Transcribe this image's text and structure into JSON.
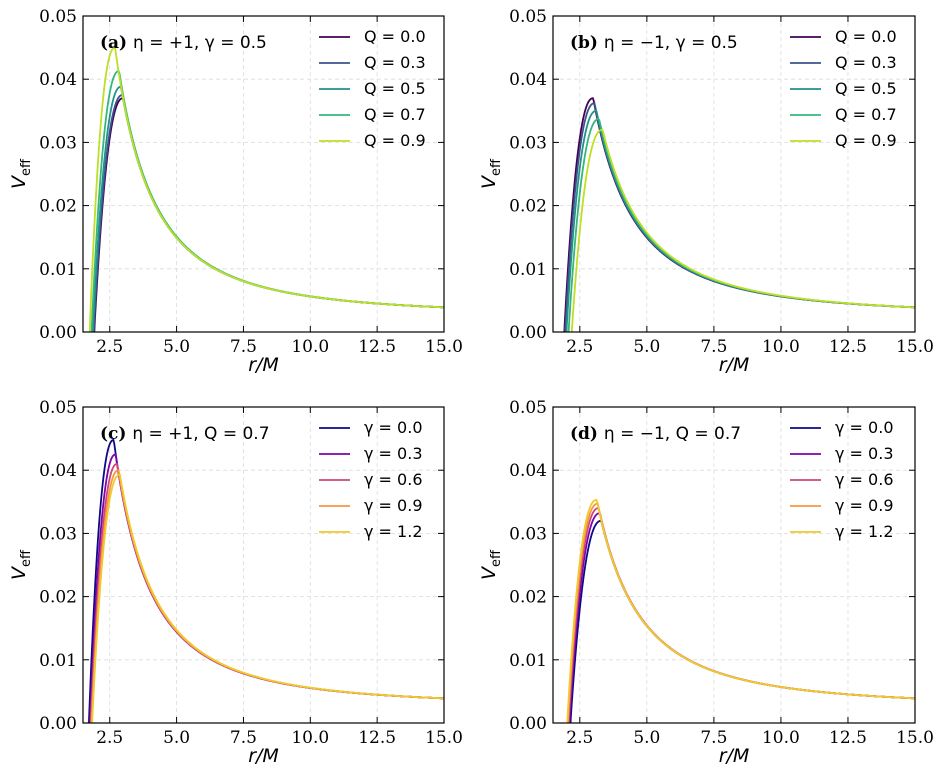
{
  "chart_data": [
    {
      "id": "a",
      "type": "line",
      "title_label": "(a)",
      "title_text": "η = +1, γ = 0.5",
      "xlabel": "r/M",
      "ylabel": "V_eff",
      "xlim": [
        1.5,
        15.0
      ],
      "ylim": [
        0.0,
        0.05
      ],
      "xticks": [
        "2.5",
        "5.0",
        "7.5",
        "10.0",
        "12.5",
        "15.0"
      ],
      "yticks": [
        "0.00",
        "0.01",
        "0.02",
        "0.03",
        "0.04",
        "0.05"
      ],
      "grid": true,
      "legend_position": "top-right",
      "series": [
        {
          "name": "Q = 0.0",
          "color": "#440154",
          "root": 1.92,
          "peak_r": 3.0,
          "peak_v": 0.037
        },
        {
          "name": "Q = 0.3",
          "color": "#3b528b",
          "root": 1.9,
          "peak_r": 2.98,
          "peak_v": 0.0375
        },
        {
          "name": "Q = 0.5",
          "color": "#21918c",
          "root": 1.87,
          "peak_r": 2.92,
          "peak_v": 0.0388
        },
        {
          "name": "Q = 0.7",
          "color": "#35b779",
          "root": 1.82,
          "peak_r": 2.85,
          "peak_v": 0.0413
        },
        {
          "name": "Q = 0.9",
          "color": "#bddf26",
          "root": 1.75,
          "peak_r": 2.7,
          "peak_v": 0.045
        }
      ]
    },
    {
      "id": "b",
      "type": "line",
      "title_label": "(b)",
      "title_text": "η = −1, γ = 0.5",
      "xlabel": "r/M",
      "ylabel": "V_eff",
      "xlim": [
        1.5,
        15.0
      ],
      "ylim": [
        0.0,
        0.05
      ],
      "xticks": [
        "2.5",
        "5.0",
        "7.5",
        "10.0",
        "12.5",
        "15.0"
      ],
      "yticks": [
        "0.00",
        "0.01",
        "0.02",
        "0.03",
        "0.04",
        "0.05"
      ],
      "grid": true,
      "legend_position": "top-right",
      "series": [
        {
          "name": "Q = 0.0",
          "color": "#440154",
          "root": 1.92,
          "peak_r": 3.0,
          "peak_v": 0.037
        },
        {
          "name": "Q = 0.3",
          "color": "#3b528b",
          "root": 1.95,
          "peak_r": 3.05,
          "peak_v": 0.0362
        },
        {
          "name": "Q = 0.5",
          "color": "#21918c",
          "root": 2.0,
          "peak_r": 3.12,
          "peak_v": 0.035
        },
        {
          "name": "Q = 0.7",
          "color": "#35b779",
          "root": 2.08,
          "peak_r": 3.22,
          "peak_v": 0.0337
        },
        {
          "name": "Q = 0.9",
          "color": "#bddf26",
          "root": 2.2,
          "peak_r": 3.35,
          "peak_v": 0.032
        }
      ]
    },
    {
      "id": "c",
      "type": "line",
      "title_label": "(c)",
      "title_text": "η = +1, Q = 0.7",
      "xlabel": "r/M",
      "ylabel": "V_eff",
      "xlim": [
        1.5,
        15.0
      ],
      "ylim": [
        0.0,
        0.05
      ],
      "xticks": [
        "2.5",
        "5.0",
        "7.5",
        "10.0",
        "12.5",
        "15.0"
      ],
      "yticks": [
        "0.00",
        "0.01",
        "0.02",
        "0.03",
        "0.04",
        "0.05"
      ],
      "grid": true,
      "legend_position": "top-right",
      "series": [
        {
          "name": "γ = 0.0",
          "color": "#0d0887",
          "root": 1.72,
          "peak_r": 2.65,
          "peak_v": 0.0448
        },
        {
          "name": "γ = 0.3",
          "color": "#7e03a8",
          "root": 1.76,
          "peak_r": 2.72,
          "peak_v": 0.0425
        },
        {
          "name": "γ = 0.6",
          "color": "#cc4778",
          "root": 1.79,
          "peak_r": 2.78,
          "peak_v": 0.041
        },
        {
          "name": "γ = 0.9",
          "color": "#f89540",
          "root": 1.82,
          "peak_r": 2.83,
          "peak_v": 0.04
        },
        {
          "name": "γ = 1.2",
          "color": "#f0c92b",
          "root": 1.84,
          "peak_r": 2.88,
          "peak_v": 0.0393
        }
      ]
    },
    {
      "id": "d",
      "type": "line",
      "title_label": "(d)",
      "title_text": "η = −1, Q = 0.7",
      "xlabel": "r/M",
      "ylabel": "V_eff",
      "xlim": [
        1.5,
        15.0
      ],
      "ylim": [
        0.0,
        0.05
      ],
      "xticks": [
        "2.5",
        "5.0",
        "7.5",
        "10.0",
        "12.5",
        "15.0"
      ],
      "yticks": [
        "0.00",
        "0.01",
        "0.02",
        "0.03",
        "0.04",
        "0.05"
      ],
      "grid": true,
      "legend_position": "top-right",
      "series": [
        {
          "name": "γ = 0.0",
          "color": "#0d0887",
          "root": 2.15,
          "peak_r": 3.3,
          "peak_v": 0.032
        },
        {
          "name": "γ = 0.3",
          "color": "#7e03a8",
          "root": 2.11,
          "peak_r": 3.25,
          "peak_v": 0.0332
        },
        {
          "name": "γ = 0.6",
          "color": "#cc4778",
          "root": 2.08,
          "peak_r": 3.2,
          "peak_v": 0.034
        },
        {
          "name": "γ = 0.9",
          "color": "#f89540",
          "root": 2.05,
          "peak_r": 3.17,
          "peak_v": 0.0347
        },
        {
          "name": "γ = 1.2",
          "color": "#f0c92b",
          "root": 2.03,
          "peak_r": 3.13,
          "peak_v": 0.0353
        }
      ]
    }
  ],
  "tail": {
    "r": 15.0,
    "v": 0.0039
  }
}
